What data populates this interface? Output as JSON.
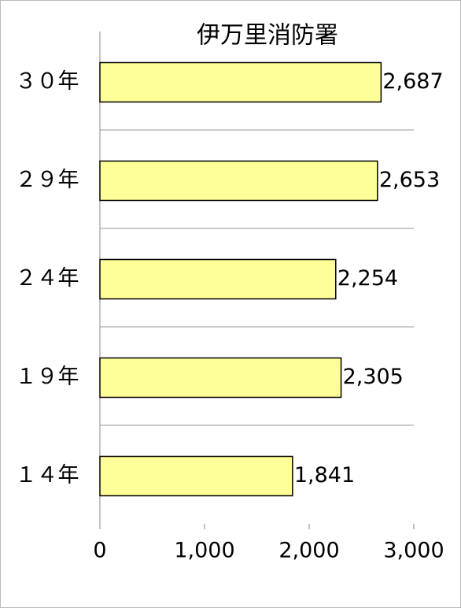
{
  "chart_data": {
    "type": "bar",
    "orientation": "horizontal",
    "title": "伊万里消防署",
    "categories": [
      "３０年",
      "２９年",
      "２４年",
      "１９年",
      "１４年"
    ],
    "values": [
      2687,
      2653,
      2254,
      2305,
      1841
    ],
    "value_labels": [
      "2,687",
      "2,653",
      "2,254",
      "2,305",
      "1,841"
    ],
    "color": "#ffff99",
    "xlim": [
      0,
      3000
    ],
    "xticks": [
      0,
      {
        "value": 1000,
        "label": "1,000"
      },
      {
        "value": 2000,
        "label": "2,000"
      },
      {
        "value": 3000,
        "label": "3,000"
      }
    ]
  }
}
